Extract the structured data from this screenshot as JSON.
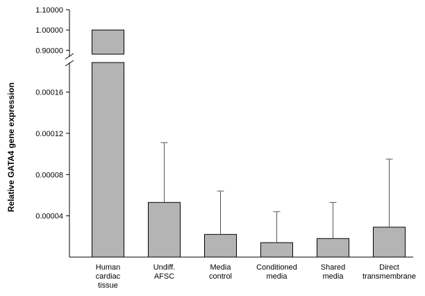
{
  "chart_data": {
    "type": "bar",
    "ylabel": "Relative GATA4 gene expression",
    "categories": [
      [
        "Human",
        "cardiac",
        "tissue"
      ],
      [
        "Undiff.",
        "AFSC"
      ],
      [
        "Media",
        "control"
      ],
      [
        "Conditioned",
        "media"
      ],
      [
        "Shared",
        "media"
      ],
      [
        "Direct",
        "transmembrane"
      ]
    ],
    "values": [
      1.0,
      5.3e-05,
      2.2e-05,
      1.4e-05,
      1.8e-05,
      2.9e-05
    ],
    "error_upper": [
      null,
      0.000111,
      6.4e-05,
      4.4e-05,
      5.3e-05,
      9.5e-05
    ],
    "axis_broken": true,
    "lower_segment": {
      "ylim": [
        0,
        0.00019
      ],
      "ticks": [
        "0.00004",
        "0.00008",
        "0.00012",
        "0.00016"
      ],
      "tick_values": [
        4e-05,
        8e-05,
        0.00012,
        0.00016
      ]
    },
    "upper_segment": {
      "ylim": [
        0.86,
        1.1
      ],
      "ticks": [
        "0.90000",
        "1.00000",
        "1.10000"
      ],
      "tick_values": [
        0.9,
        1.0,
        1.1
      ]
    },
    "bar_color": "#b4b4b4",
    "grid": false,
    "legend": "none"
  }
}
